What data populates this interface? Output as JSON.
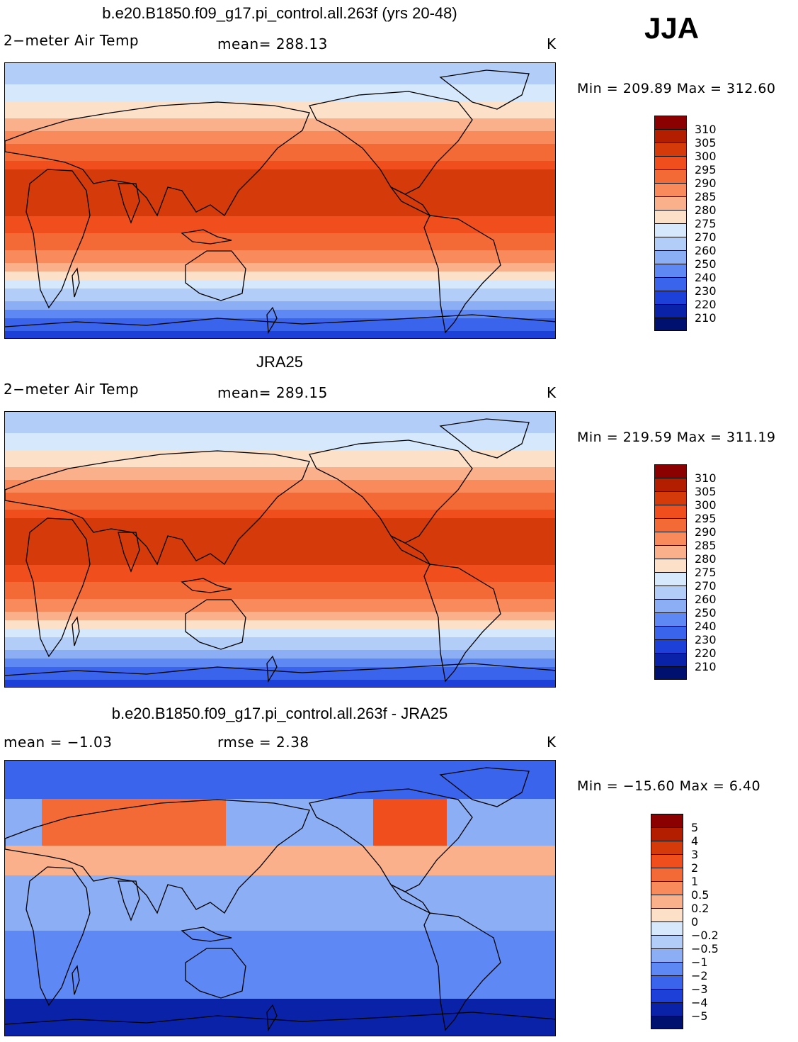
{
  "season": "JJA",
  "panels": [
    {
      "title": "b.e20.B1850.f09_g17.pi_control.all.263f (yrs 20-48)",
      "left_label": "2−meter Air Temp",
      "center_label": "mean=  288.13",
      "units": "K",
      "minmax": "Min  =  209.89  Max  =  312.60",
      "kind": "temperature"
    },
    {
      "title": "JRA25",
      "left_label": "2−meter Air Temp",
      "center_label": "mean=  289.15",
      "units": "K",
      "minmax": "Min  =  219.59  Max  =  311.19",
      "kind": "temperature"
    },
    {
      "title": "b.e20.B1850.f09_g17.pi_control.all.263f - JRA25",
      "left_label": "mean  =    −1.03",
      "center_label": "rmse  =     2.38",
      "units": "K",
      "minmax": "Min  =  −15.60  Max  =     6.40",
      "kind": "difference"
    }
  ],
  "colorbars": {
    "temperature": {
      "labels": [
        "310",
        "305",
        "300",
        "295",
        "290",
        "285",
        "280",
        "275",
        "270",
        "260",
        "250",
        "240",
        "230",
        "220",
        "210"
      ],
      "colors": [
        "#8b0000",
        "#b31e00",
        "#d43a0a",
        "#f04e1c",
        "#f36a36",
        "#f88a5c",
        "#fbb08c",
        "#fde0c8",
        "#d6e8fb",
        "#b2cdf7",
        "#8caef5",
        "#5e88f3",
        "#3a64ec",
        "#1c40d8",
        "#0a22a8",
        "#00106e"
      ]
    },
    "difference": {
      "labels": [
        "5",
        "4",
        "3",
        "2",
        "1",
        "0.5",
        "0.2",
        "0",
        "−0.2",
        "−0.5",
        "−1",
        "−2",
        "−3",
        "−4",
        "−5"
      ],
      "colors": [
        "#8b0000",
        "#b31e00",
        "#d43a0a",
        "#f04e1c",
        "#f36a36",
        "#f88a5c",
        "#fbb08c",
        "#fde0c8",
        "#d6e8fb",
        "#b2cdf7",
        "#8caef5",
        "#5e88f3",
        "#3a64ec",
        "#1c40d8",
        "#0a22a8",
        "#00106e"
      ]
    }
  }
}
